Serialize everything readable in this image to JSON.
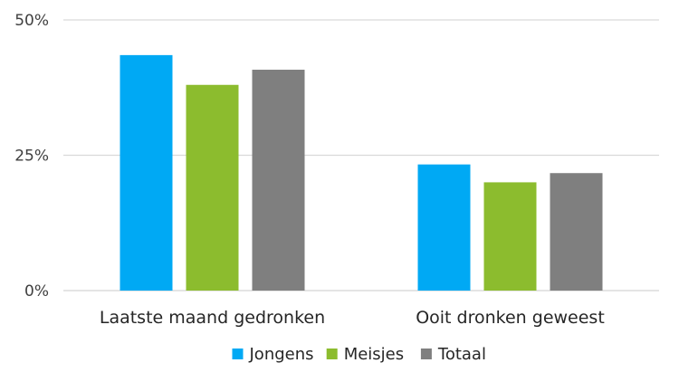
{
  "chart_data": {
    "type": "bar",
    "categories": [
      "Laatste maand gedronken",
      "Ooit dronken geweest"
    ],
    "series": [
      {
        "name": "Jongens",
        "color": "#00a9f4",
        "values": [
          43.5,
          23.3
        ]
      },
      {
        "name": "Meisjes",
        "color": "#8cbc2e",
        "values": [
          38.0,
          20.0
        ]
      },
      {
        "name": "Totaal",
        "color": "#7f7f7f",
        "values": [
          40.8,
          21.7
        ]
      }
    ],
    "yticks": [
      "0%",
      "25%",
      "50%"
    ],
    "ytick_values": [
      0,
      25,
      50
    ],
    "ylim": [
      0,
      50
    ],
    "grid": true,
    "legend_position": "bottom",
    "title": "",
    "xlabel": "",
    "ylabel": ""
  }
}
